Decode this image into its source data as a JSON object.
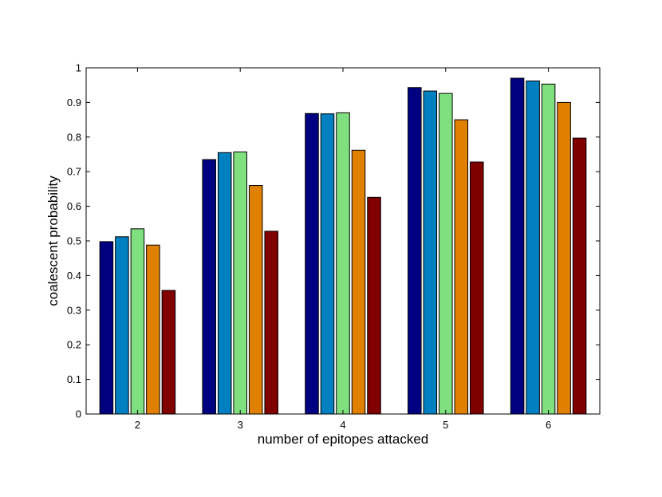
{
  "chart_data": {
    "type": "bar",
    "title": "",
    "xlabel": "number of epitopes attacked",
    "ylabel": "coalescent probability",
    "categories": [
      "2",
      "3",
      "4",
      "5",
      "6"
    ],
    "ylim": [
      0,
      1
    ],
    "yticks": [
      "0",
      "0.1",
      "0.2",
      "0.3",
      "0.4",
      "0.5",
      "0.6",
      "0.7",
      "0.8",
      "0.9",
      "1"
    ],
    "grid": false,
    "legend": "none",
    "series": [
      {
        "color": "#000080",
        "values": [
          0.498,
          0.735,
          0.868,
          0.943,
          0.97
        ]
      },
      {
        "color": "#0080c0",
        "values": [
          0.512,
          0.755,
          0.867,
          0.933,
          0.962
        ]
      },
      {
        "color": "#80e080",
        "values": [
          0.535,
          0.757,
          0.87,
          0.926,
          0.953
        ]
      },
      {
        "color": "#e08000",
        "values": [
          0.488,
          0.66,
          0.762,
          0.85,
          0.9
        ]
      },
      {
        "color": "#800000",
        "values": [
          0.357,
          0.528,
          0.626,
          0.728,
          0.797
        ]
      }
    ]
  }
}
